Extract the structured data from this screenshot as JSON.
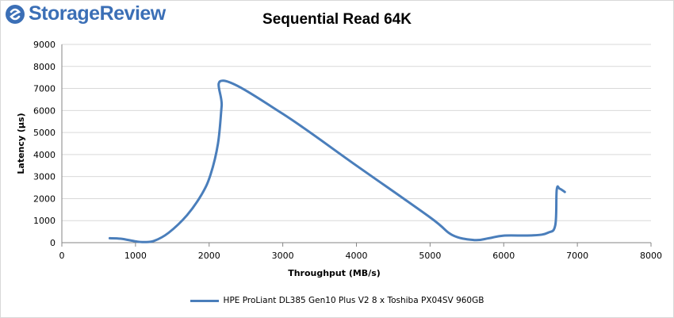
{
  "brand": {
    "name": "StorageReview"
  },
  "chart_data": {
    "type": "line",
    "title": "Sequential Read 64K",
    "xlabel": "Throughput (MB/s)",
    "ylabel": "Latency (µs)",
    "xlim": [
      0,
      8000
    ],
    "ylim": [
      0,
      9000
    ],
    "x_ticks": [
      0,
      1000,
      2000,
      3000,
      4000,
      5000,
      6000,
      7000,
      8000
    ],
    "y_ticks": [
      0,
      1000,
      2000,
      3000,
      4000,
      5000,
      6000,
      7000,
      8000,
      9000
    ],
    "grid": "horizontal",
    "legend_position": "bottom",
    "colors": {
      "series": "#4a7ebb",
      "grid": "#d9d9d9",
      "axis": "#868686"
    },
    "series": [
      {
        "name": "HPE ProLiant DL385 Gen10 Plus V2 8 x Toshiba PX04SV 960GB",
        "x": [
          650,
          800,
          1000,
          1100,
          1250,
          1450,
          1700,
          1900,
          2020,
          2120,
          2170,
          2200,
          3000,
          4000,
          5000,
          5300,
          5600,
          5800,
          6000,
          6400,
          6600,
          6700,
          6720,
          6760,
          6830
        ],
        "y": [
          200,
          180,
          60,
          30,
          80,
          450,
          1250,
          2200,
          3100,
          4500,
          6200,
          7350,
          5850,
          3500,
          1150,
          350,
          120,
          200,
          320,
          330,
          450,
          800,
          2400,
          2450,
          2300
        ]
      }
    ]
  }
}
